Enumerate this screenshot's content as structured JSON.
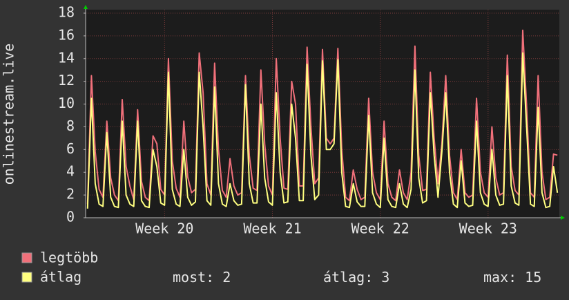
{
  "chart_data": {
    "type": "line",
    "y_label": "onlinestream.live",
    "categories": [
      null,
      null,
      null,
      null,
      null,
      null,
      null,
      null,
      null,
      null,
      null,
      null,
      null,
      null,
      null,
      null,
      null,
      null,
      null,
      null,
      "Week 20",
      null,
      null,
      null,
      null,
      null,
      null,
      null,
      null,
      null,
      null,
      null,
      null,
      null,
      null,
      null,
      null,
      null,
      null,
      null,
      null,
      null,
      null,
      null,
      null,
      null,
      null,
      null,
      "Week 21",
      null,
      null,
      null,
      null,
      null,
      null,
      null,
      null,
      null,
      null,
      null,
      null,
      null,
      null,
      null,
      null,
      null,
      null,
      null,
      null,
      null,
      null,
      null,
      null,
      null,
      null,
      null,
      "Week 22",
      null,
      null,
      null,
      null,
      null,
      null,
      null,
      null,
      null,
      null,
      null,
      null,
      null,
      null,
      null,
      null,
      null,
      null,
      null,
      null,
      null,
      null,
      null,
      null,
      null,
      null,
      null,
      "Week 23",
      null,
      null,
      null,
      null,
      null,
      null,
      null,
      null,
      null,
      null,
      null,
      null,
      null,
      null,
      null,
      null,
      null,
      null
    ],
    "series": [
      {
        "name": "legtöbb",
        "color": "#f0707a",
        "values": [
          1.2,
          12.5,
          5.8,
          2.5,
          1.8,
          8.5,
          3.5,
          2.0,
          1.5,
          10.4,
          4.5,
          2.8,
          1.6,
          9.5,
          3.2,
          1.8,
          1.5,
          7.2,
          6.5,
          2.5,
          2.0,
          14.0,
          5.0,
          2.6,
          1.8,
          8.5,
          3.6,
          2.2,
          2.5,
          14.5,
          11.0,
          3.0,
          2.0,
          13.6,
          6.0,
          2.4,
          1.8,
          5.2,
          2.8,
          2.0,
          2.2,
          12.5,
          5.5,
          2.6,
          2.4,
          13.0,
          6.5,
          2.8,
          2.0,
          14.0,
          7.0,
          2.6,
          2.5,
          12.0,
          10.0,
          2.8,
          2.8,
          15.0,
          8.0,
          3.0,
          3.5,
          14.8,
          7.0,
          6.5,
          7.0,
          14.9,
          6.0,
          1.8,
          1.5,
          4.2,
          2.5,
          1.6,
          1.8,
          10.5,
          4.0,
          2.2,
          1.6,
          8.5,
          3.0,
          1.8,
          1.5,
          4.2,
          2.2,
          1.6,
          4.0,
          15.1,
          5.5,
          2.4,
          2.5,
          12.8,
          7.0,
          3.0,
          6.5,
          12.5,
          5.5,
          2.2,
          1.6,
          6.0,
          2.2,
          1.8,
          2.0,
          10.5,
          4.0,
          2.2,
          1.8,
          8.0,
          3.5,
          2.0,
          2.2,
          14.3,
          4.5,
          2.4,
          2.0,
          16.5,
          9.8,
          2.2,
          1.8,
          12.5,
          4.0,
          1.6,
          1.8,
          5.6,
          5.5
        ]
      },
      {
        "name": "átlag",
        "color": "#ffff80",
        "values": [
          0.8,
          10.5,
          3.0,
          1.2,
          1.0,
          7.5,
          1.8,
          1.0,
          0.9,
          8.5,
          2.0,
          1.2,
          1.0,
          8.5,
          1.5,
          1.0,
          0.9,
          6.0,
          4.5,
          1.3,
          1.1,
          12.8,
          2.5,
          1.2,
          1.0,
          6.0,
          1.8,
          1.1,
          1.4,
          12.8,
          8.0,
          1.5,
          1.1,
          11.5,
          3.0,
          1.2,
          1.0,
          3.0,
          1.5,
          1.1,
          1.2,
          11.7,
          3.0,
          1.3,
          1.3,
          10.0,
          3.5,
          1.4,
          1.1,
          11.0,
          4.0,
          1.3,
          1.4,
          10.0,
          7.0,
          1.5,
          1.5,
          13.5,
          5.5,
          1.6,
          2.0,
          13.8,
          6.0,
          6.0,
          6.5,
          13.9,
          4.0,
          1.0,
          0.9,
          3.0,
          1.4,
          1.0,
          1.0,
          9.0,
          2.2,
          1.2,
          0.9,
          7.0,
          1.6,
          1.0,
          0.9,
          3.0,
          1.2,
          0.9,
          2.5,
          13.0,
          3.5,
          1.3,
          1.5,
          11.0,
          5.5,
          1.8,
          5.8,
          11.0,
          4.0,
          1.2,
          0.9,
          5.0,
          1.3,
          1.0,
          1.1,
          8.5,
          2.2,
          1.2,
          1.0,
          6.0,
          2.0,
          1.1,
          1.2,
          12.5,
          2.8,
          1.3,
          1.1,
          14.5,
          8.0,
          1.2,
          1.0,
          9.7,
          2.2,
          0.9,
          1.0,
          4.5,
          2.2
        ]
      }
    ],
    "ylim": [
      0,
      18
    ],
    "yticks": [
      0,
      2,
      4,
      6,
      8,
      10,
      12,
      14,
      16,
      18
    ],
    "grid": true,
    "stats": [
      {
        "label": "most:",
        "value": 2
      },
      {
        "label": "átlag:",
        "value": 3
      },
      {
        "label": "max:",
        "value": 15
      }
    ]
  }
}
